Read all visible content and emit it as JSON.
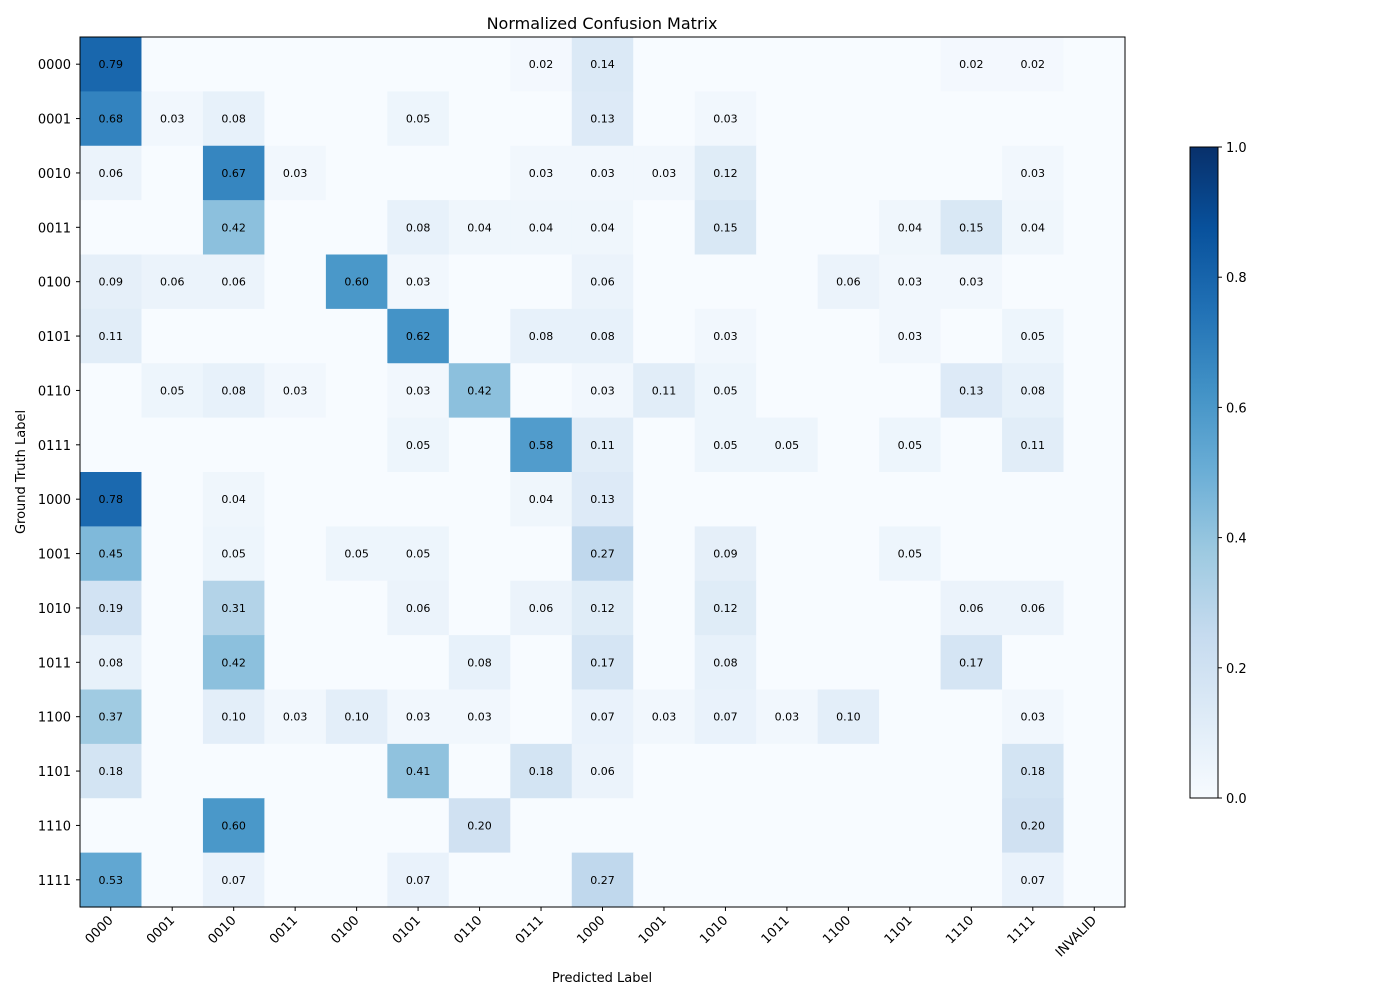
{
  "chart_data": {
    "type": "heatmap",
    "title": "Normalized Confusion Matrix",
    "xlabel": "Predicted Label",
    "ylabel": "Ground Truth Label",
    "x_labels": [
      "0000",
      "0001",
      "0010",
      "0011",
      "0100",
      "0101",
      "0110",
      "0111",
      "1000",
      "1001",
      "1010",
      "1011",
      "1100",
      "1101",
      "1110",
      "1111",
      "INVALID"
    ],
    "y_labels": [
      "0000",
      "0001",
      "0010",
      "0011",
      "0100",
      "0101",
      "0110",
      "0111",
      "1000",
      "1001",
      "1010",
      "1011",
      "1100",
      "1101",
      "1110",
      "1111"
    ],
    "values": [
      [
        0.79,
        0,
        0,
        0,
        0,
        0,
        0,
        0.02,
        0.14,
        0,
        0,
        0,
        0,
        0,
        0.02,
        0.02,
        0
      ],
      [
        0.68,
        0.03,
        0.08,
        0,
        0,
        0.05,
        0,
        0,
        0.13,
        0,
        0.03,
        0,
        0,
        0,
        0,
        0,
        0
      ],
      [
        0.06,
        0,
        0.67,
        0.03,
        0,
        0,
        0,
        0.03,
        0.03,
        0.03,
        0.12,
        0,
        0,
        0,
        0,
        0.03,
        0
      ],
      [
        0,
        0,
        0.42,
        0,
        0,
        0.08,
        0.04,
        0.04,
        0.04,
        0,
        0.15,
        0,
        0,
        0.04,
        0.15,
        0.04,
        0
      ],
      [
        0.09,
        0.06,
        0.06,
        0,
        0.6,
        0.03,
        0,
        0,
        0.06,
        0,
        0,
        0,
        0.06,
        0.03,
        0.03,
        0,
        0
      ],
      [
        0.11,
        0,
        0,
        0,
        0,
        0.62,
        0,
        0.08,
        0.08,
        0,
        0.03,
        0,
        0,
        0.03,
        0,
        0.05,
        0
      ],
      [
        0,
        0.05,
        0.08,
        0.03,
        0,
        0.03,
        0.42,
        0,
        0.03,
        0.11,
        0.05,
        0,
        0,
        0,
        0.13,
        0.08,
        0
      ],
      [
        0,
        0,
        0,
        0,
        0,
        0.05,
        0,
        0.58,
        0.11,
        0,
        0.05,
        0.05,
        0,
        0.05,
        0,
        0.11,
        0
      ],
      [
        0.78,
        0,
        0.04,
        0,
        0,
        0,
        0,
        0.04,
        0.13,
        0,
        0,
        0,
        0,
        0,
        0,
        0,
        0
      ],
      [
        0.45,
        0,
        0.05,
        0,
        0.05,
        0.05,
        0,
        0,
        0.27,
        0,
        0.09,
        0,
        0,
        0.05,
        0,
        0,
        0
      ],
      [
        0.19,
        0,
        0.31,
        0,
        0,
        0.06,
        0,
        0.06,
        0.12,
        0,
        0.12,
        0,
        0,
        0,
        0.06,
        0.06,
        0
      ],
      [
        0.08,
        0,
        0.42,
        0,
        0,
        0,
        0.08,
        0,
        0.17,
        0,
        0.08,
        0,
        0,
        0,
        0.17,
        0,
        0
      ],
      [
        0.37,
        0,
        0.1,
        0.03,
        0.1,
        0.03,
        0.03,
        0,
        0.07,
        0.03,
        0.07,
        0.03,
        0.1,
        0,
        0,
        0.03,
        0
      ],
      [
        0.18,
        0,
        0,
        0,
        0,
        0.41,
        0,
        0.18,
        0.06,
        0,
        0,
        0,
        0,
        0,
        0,
        0.18,
        0
      ],
      [
        0,
        0,
        0.6,
        0,
        0,
        0,
        0.2,
        0,
        0,
        0,
        0,
        0,
        0,
        0,
        0,
        0.2,
        0
      ],
      [
        0.53,
        0,
        0.07,
        0,
        0,
        0.07,
        0,
        0,
        0.27,
        0,
        0,
        0,
        0,
        0,
        0,
        0.07,
        0
      ]
    ],
    "colorbar": {
      "range": [
        0,
        1
      ],
      "ticks": [
        "0.0",
        "0.2",
        "0.4",
        "0.6",
        "0.8",
        "1.0"
      ],
      "colormap": "Blues"
    }
  }
}
